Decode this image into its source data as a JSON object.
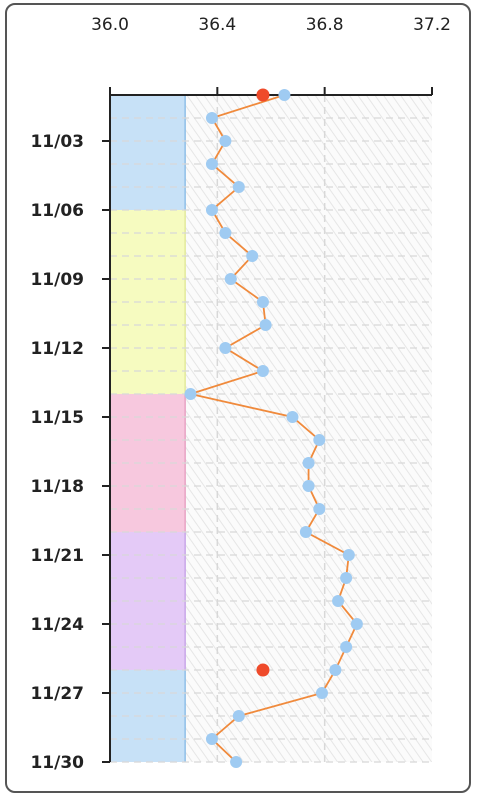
{
  "chart_data": {
    "type": "line",
    "orientation": "vertical-dates",
    "x_axis_position": "top",
    "xlim": [
      36.0,
      37.2
    ],
    "x_ticks": [
      36.0,
      36.4,
      36.8,
      37.2
    ],
    "x_tick_labels": [
      "36.0",
      "36.4",
      "36.8",
      "37.2"
    ],
    "y_start": "11/01",
    "y_end": "11/30",
    "y_ticks": [
      "11/03",
      "11/06",
      "11/09",
      "11/12",
      "11/15",
      "11/18",
      "11/21",
      "11/24",
      "11/27",
      "11/30"
    ],
    "grid": true,
    "series": [
      {
        "color": "#f08a3c",
        "marker_color": "#9fcbf2",
        "points": [
          {
            "date": "11/01",
            "value": 36.65
          },
          {
            "date": "11/02",
            "value": 36.38
          },
          {
            "date": "11/03",
            "value": 36.43
          },
          {
            "date": "11/04",
            "value": 36.38
          },
          {
            "date": "11/05",
            "value": 36.48
          },
          {
            "date": "11/06",
            "value": 36.38
          },
          {
            "date": "11/07",
            "value": 36.43
          },
          {
            "date": "11/08",
            "value": 36.53
          },
          {
            "date": "11/09",
            "value": 36.45
          },
          {
            "date": "11/10",
            "value": 36.57
          },
          {
            "date": "11/11",
            "value": 36.58
          },
          {
            "date": "11/12",
            "value": 36.43
          },
          {
            "date": "11/13",
            "value": 36.57
          },
          {
            "date": "11/14",
            "value": 36.3
          },
          {
            "date": "11/15",
            "value": 36.68
          },
          {
            "date": "11/16",
            "value": 36.78
          },
          {
            "date": "11/17",
            "value": 36.74
          },
          {
            "date": "11/18",
            "value": 36.74
          },
          {
            "date": "11/19",
            "value": 36.78
          },
          {
            "date": "11/20",
            "value": 36.73
          },
          {
            "date": "11/21",
            "value": 36.89
          },
          {
            "date": "11/22",
            "value": 36.88
          },
          {
            "date": "11/23",
            "value": 36.85
          },
          {
            "date": "11/24",
            "value": 36.92
          },
          {
            "date": "11/25",
            "value": 36.88
          },
          {
            "date": "11/26",
            "value": 36.84
          },
          {
            "date": "11/27",
            "value": 36.79
          },
          {
            "date": "11/28",
            "value": 36.48
          },
          {
            "date": "11/29",
            "value": 36.38
          },
          {
            "date": "11/30",
            "value": 36.47
          }
        ]
      }
    ],
    "markers": [
      {
        "date": "11/01",
        "value": 36.57,
        "color": "#ef4a2a"
      },
      {
        "date": "11/26",
        "value": 36.57,
        "color": "#ef4a2a"
      }
    ],
    "phase_bands": [
      {
        "from": "11/01",
        "to": "11/06",
        "color": "#c7e1f7",
        "edge": "#8fbfe8"
      },
      {
        "from": "11/06",
        "to": "11/14",
        "color": "#f6fbc0",
        "edge": "#e3ea9b"
      },
      {
        "from": "11/14",
        "to": "11/20",
        "color": "#f7c8de",
        "edge": "#e8a3c4"
      },
      {
        "from": "11/20",
        "to": "11/26",
        "color": "#e4caf7",
        "edge": "#c9a6e9"
      },
      {
        "from": "11/26",
        "to": "11/30",
        "color": "#c7e1f7",
        "edge": "#8fbfe8"
      }
    ],
    "band_max_value": 36.28,
    "colors": {
      "frame_border": "#555555",
      "axis": "#222222",
      "grid": "#d8d8d8",
      "hatch": "#e6e6e6"
    }
  }
}
